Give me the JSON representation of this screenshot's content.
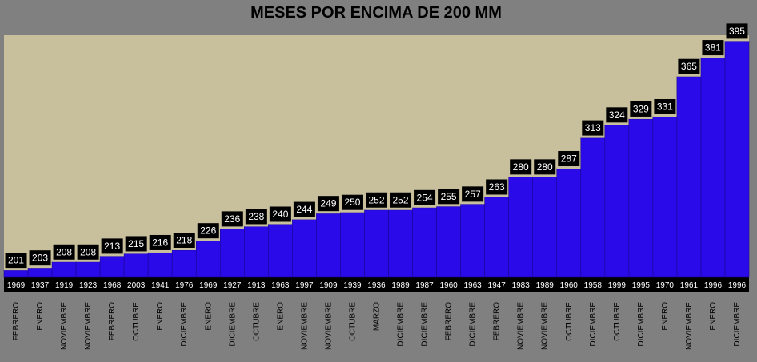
{
  "chart_data": {
    "type": "bar",
    "title": "MESES POR ENCIMA DE 200 MM",
    "xlabel": "",
    "ylabel": "",
    "ylim": [
      195,
      400
    ],
    "grid": false,
    "legend": "none",
    "colors": {
      "page_background": "#808080",
      "plot_background": "#c8c09c",
      "bar_fill": "#2a0ae8",
      "bar_top_edge": "#c8c09c",
      "label_box": "#000000",
      "label_text": "#ffffff",
      "year_strip": "#000000",
      "title_text": "#000000"
    },
    "categories": [
      "FEBRERO",
      "ENERO",
      "NOVIEMBRE",
      "NOVIEMBRE",
      "FEBRERO",
      "OCTUBRE",
      "ENERO",
      "DICIEMBRE",
      "ENERO",
      "DICIEMBRE",
      "OCTUBRE",
      "ENERO",
      "NOVIEMBRE",
      "NOVIEMBRE",
      "OCTUBRE",
      "MARZO",
      "DICIEMBRE",
      "DICIEMBRE",
      "FEBRERO",
      "DICIEMBRE",
      "FEBRERO",
      "NOVIEMBRE",
      "NOVIEMBRE",
      "OCTUBRE",
      "DICIEMBRE",
      "OCTUBRE",
      "DICIEMBRE",
      "ENERO",
      "NOVIEMBRE",
      "ENERO",
      "DICIEMBRE"
    ],
    "years": [
      "1969",
      "1937",
      "1919",
      "1923",
      "1968",
      "2003",
      "1941",
      "1976",
      "1969",
      "1927",
      "1913",
      "1963",
      "1997",
      "1909",
      "1939",
      "1936",
      "1989",
      "1987",
      "1960",
      "1963",
      "1947",
      "1983",
      "1989",
      "1960",
      "1958",
      "1999",
      "1995",
      "1970",
      "1961",
      "1996",
      "1996"
    ],
    "values": [
      201,
      203,
      208,
      208,
      213,
      215,
      216,
      218,
      226,
      236,
      238,
      240,
      244,
      249,
      250,
      252,
      252,
      254,
      255,
      257,
      263,
      280,
      280,
      287,
      313,
      324,
      329,
      331,
      365,
      381,
      395
    ]
  }
}
